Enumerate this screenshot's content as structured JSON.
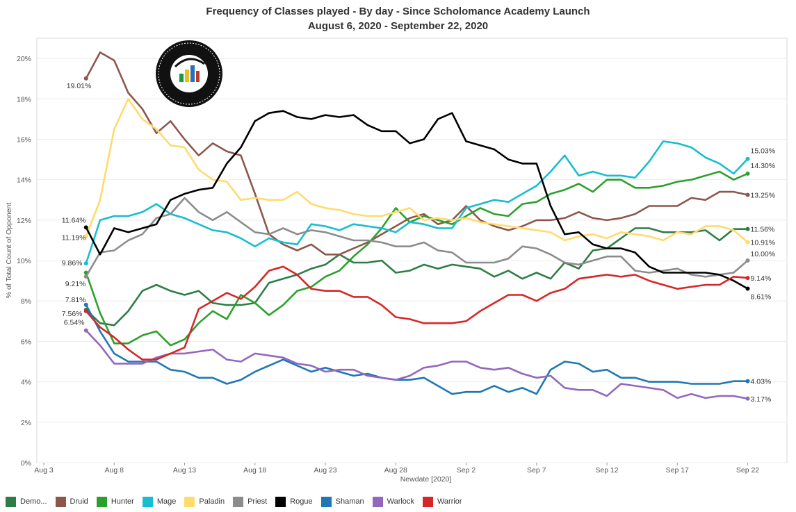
{
  "chart_data": {
    "type": "line",
    "title": "Frequency of Classes played - By day - Since Scholomance Academy Launch",
    "subtitle": "August 6, 2020 - September 22, 2020",
    "xlabel": "Newdate [2020]",
    "ylabel": "% of Total Count of Opponent",
    "ylim": [
      0,
      21
    ],
    "yticks": [
      "0%",
      "2%",
      "4%",
      "6%",
      "8%",
      "10%",
      "12%",
      "14%",
      "16%",
      "18%",
      "20%"
    ],
    "xticks": [
      {
        "day": 0,
        "label": "Aug 3"
      },
      {
        "day": 5,
        "label": "Aug 8"
      },
      {
        "day": 10,
        "label": "Aug 13"
      },
      {
        "day": 15,
        "label": "Aug 18"
      },
      {
        "day": 20,
        "label": "Aug 23"
      },
      {
        "day": 25,
        "label": "Aug 28"
      },
      {
        "day": 30,
        "label": "Sep 2"
      },
      {
        "day": 35,
        "label": "Sep 7"
      },
      {
        "day": 40,
        "label": "Sep 12"
      },
      {
        "day": 45,
        "label": "Sep 17"
      },
      {
        "day": 50,
        "label": "Sep 22"
      }
    ],
    "x_first_day": 3,
    "grid": true,
    "legend_position": "bottom",
    "series": [
      {
        "name": "Demo...",
        "color": "#2e7d46",
        "start_label": "7.56%",
        "end_label": "11.56%",
        "values": [
          7.56,
          6.9,
          6.8,
          7.5,
          8.5,
          8.8,
          8.5,
          8.3,
          8.5,
          7.9,
          7.8,
          7.8,
          7.9,
          8.9,
          9.1,
          9.3,
          9.6,
          9.8,
          10.3,
          9.9,
          9.9,
          10.0,
          9.4,
          9.5,
          9.8,
          9.6,
          9.8,
          9.7,
          9.6,
          9.2,
          9.5,
          9.1,
          9.4,
          9.1,
          9.9,
          9.6,
          10.5,
          10.6,
          11.1,
          11.6,
          11.6,
          11.4,
          11.4,
          11.4,
          11.5,
          11.0,
          11.56,
          11.56
        ]
      },
      {
        "name": "Druid",
        "color": "#8c564b",
        "start_label": "19.01%",
        "end_label": "13.25%",
        "values": [
          19.01,
          20.3,
          19.9,
          18.3,
          17.5,
          16.3,
          16.9,
          16.0,
          15.2,
          15.8,
          15.4,
          15.2,
          13.3,
          11.3,
          10.8,
          10.5,
          10.8,
          10.3,
          10.3,
          10.6,
          10.9,
          11.3,
          11.7,
          12.1,
          12.3,
          11.8,
          12.0,
          12.7,
          12.0,
          11.7,
          11.5,
          11.7,
          12.0,
          12.0,
          12.1,
          12.4,
          12.1,
          12.0,
          12.1,
          12.3,
          12.7,
          12.7,
          12.7,
          13.1,
          13.0,
          13.4,
          13.4,
          13.25
        ]
      },
      {
        "name": "Hunter",
        "color": "#2ca02c",
        "start_label": "",
        "end_label": "14.30%",
        "values": [
          9.4,
          7.4,
          5.9,
          5.9,
          6.3,
          6.5,
          5.8,
          6.1,
          6.9,
          7.5,
          7.1,
          8.3,
          7.9,
          7.3,
          7.8,
          8.5,
          8.7,
          9.2,
          9.5,
          10.2,
          10.8,
          11.6,
          12.6,
          11.9,
          12.2,
          12.0,
          11.8,
          12.2,
          12.6,
          12.3,
          12.2,
          12.8,
          12.9,
          13.3,
          13.5,
          13.8,
          13.4,
          14.0,
          14.0,
          13.6,
          13.6,
          13.7,
          13.9,
          14.0,
          14.2,
          14.4,
          14.0,
          14.3
        ]
      },
      {
        "name": "Mage",
        "color": "#17becf",
        "start_label": "9.86%",
        "end_label": "15.03%",
        "values": [
          9.86,
          12.0,
          12.2,
          12.2,
          12.4,
          12.8,
          12.3,
          12.1,
          11.8,
          11.5,
          11.4,
          11.1,
          10.7,
          11.1,
          10.9,
          10.8,
          11.8,
          11.7,
          11.5,
          11.8,
          11.7,
          11.6,
          11.4,
          11.9,
          11.8,
          11.6,
          11.6,
          12.6,
          12.8,
          13.0,
          12.9,
          13.3,
          13.7,
          14.4,
          15.2,
          14.2,
          14.4,
          14.2,
          14.2,
          14.1,
          14.9,
          15.9,
          15.8,
          15.6,
          15.1,
          14.8,
          14.3,
          15.03
        ]
      },
      {
        "name": "Paladin",
        "color": "#ffdb6e",
        "start_label": "11.19%",
        "end_label": "10.91%",
        "values": [
          11.19,
          13.0,
          16.5,
          18.0,
          17.0,
          16.5,
          15.7,
          15.6,
          14.5,
          14.0,
          13.9,
          13.0,
          13.1,
          13.0,
          13.0,
          13.4,
          12.8,
          12.6,
          12.5,
          12.3,
          12.2,
          12.2,
          12.4,
          12.6,
          12.0,
          12.1,
          12.0,
          12.1,
          11.9,
          11.8,
          11.7,
          11.6,
          11.5,
          11.4,
          11.0,
          11.2,
          11.3,
          11.1,
          11.4,
          11.3,
          11.2,
          11.0,
          11.4,
          11.3,
          11.7,
          11.7,
          11.5,
          10.91
        ]
      },
      {
        "name": "Priest",
        "color": "#8c8c8c",
        "start_label": "9.21%",
        "end_label": "10.00%",
        "values": [
          9.21,
          10.4,
          10.5,
          11.0,
          11.3,
          12.1,
          12.3,
          13.1,
          12.4,
          12.0,
          12.4,
          11.9,
          11.4,
          11.3,
          11.6,
          11.3,
          11.5,
          11.4,
          11.2,
          11.0,
          11.0,
          10.9,
          10.7,
          10.7,
          10.9,
          10.5,
          10.4,
          9.9,
          9.9,
          9.9,
          10.1,
          10.7,
          10.6,
          10.3,
          9.9,
          9.8,
          10.0,
          10.2,
          10.2,
          9.5,
          9.4,
          9.5,
          9.6,
          9.3,
          9.2,
          9.3,
          9.4,
          10.0
        ]
      },
      {
        "name": "Rogue",
        "color": "#000000",
        "start_label": "11.64%",
        "end_label": "8.61%",
        "values": [
          11.64,
          10.3,
          11.6,
          11.4,
          11.6,
          11.8,
          13.0,
          13.3,
          13.5,
          13.6,
          14.8,
          15.6,
          16.9,
          17.3,
          17.4,
          17.1,
          17.0,
          17.2,
          17.1,
          17.2,
          16.7,
          16.4,
          16.4,
          15.8,
          16.0,
          17.0,
          17.3,
          15.9,
          15.7,
          15.5,
          15.0,
          14.8,
          14.8,
          12.7,
          11.3,
          11.4,
          10.8,
          10.6,
          10.6,
          10.4,
          9.7,
          9.4,
          9.4,
          9.4,
          9.4,
          9.3,
          9.0,
          8.61
        ]
      },
      {
        "name": "Shaman",
        "color": "#1f77b4",
        "start_label": "7.81%",
        "end_label": "4.03%",
        "values": [
          7.81,
          6.5,
          5.4,
          5.0,
          5.0,
          5.0,
          4.6,
          4.5,
          4.2,
          4.2,
          3.9,
          4.1,
          4.5,
          4.8,
          5.1,
          4.8,
          4.5,
          4.7,
          4.5,
          4.3,
          4.4,
          4.2,
          4.1,
          4.1,
          4.2,
          3.8,
          3.4,
          3.5,
          3.5,
          3.8,
          3.5,
          3.7,
          3.4,
          4.6,
          5.0,
          4.9,
          4.5,
          4.6,
          4.2,
          4.2,
          4.0,
          4.0,
          4.0,
          3.9,
          3.9,
          3.9,
          4.03,
          4.03
        ]
      },
      {
        "name": "Warlock",
        "color": "#9467bd",
        "start_label": "6.54%",
        "end_label": "3.17%",
        "values": [
          6.54,
          5.8,
          4.9,
          4.9,
          4.9,
          5.2,
          5.4,
          5.4,
          5.5,
          5.6,
          5.1,
          5.0,
          5.4,
          5.3,
          5.2,
          4.9,
          4.8,
          4.5,
          4.6,
          4.6,
          4.3,
          4.2,
          4.1,
          4.3,
          4.7,
          4.8,
          5.0,
          5.0,
          4.7,
          4.6,
          4.7,
          4.4,
          4.2,
          4.3,
          3.7,
          3.6,
          3.6,
          3.3,
          3.9,
          3.8,
          3.7,
          3.6,
          3.2,
          3.4,
          3.2,
          3.3,
          3.3,
          3.17
        ]
      },
      {
        "name": "Warrior",
        "color": "#d62728",
        "start_label": "",
        "end_label": "9.14%",
        "values": [
          7.5,
          6.7,
          6.2,
          5.6,
          5.1,
          5.1,
          5.4,
          5.7,
          7.6,
          8.0,
          8.4,
          8.1,
          8.7,
          9.5,
          9.7,
          9.3,
          8.6,
          8.5,
          8.5,
          8.2,
          8.2,
          7.8,
          7.2,
          7.1,
          6.9,
          6.9,
          6.9,
          7.0,
          7.5,
          7.9,
          8.3,
          8.3,
          8.0,
          8.4,
          8.6,
          9.1,
          9.2,
          9.3,
          9.2,
          9.3,
          9.0,
          8.8,
          8.6,
          8.7,
          8.8,
          8.8,
          9.2,
          9.14
        ]
      }
    ]
  },
  "logo": {
    "text": "DATA REAPER REPORT",
    "subtext": "VICIOUS SYNDICATE PRESENTS"
  }
}
